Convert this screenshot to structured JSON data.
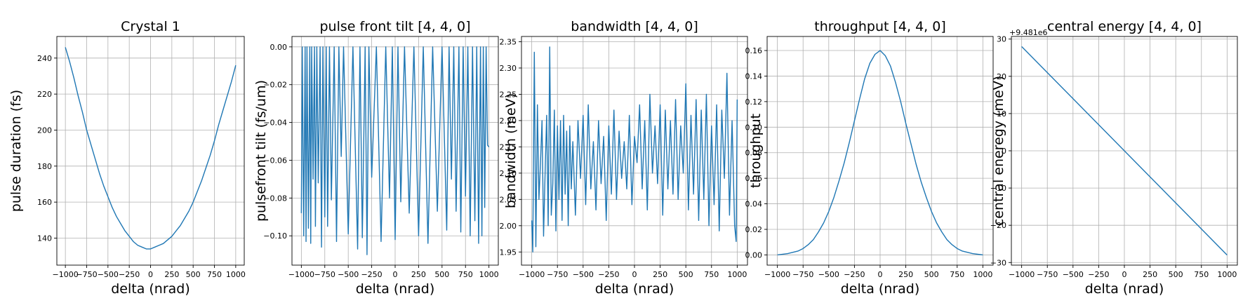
{
  "colors": {
    "series": "#1f77b4",
    "grid": "#b0b0b0",
    "axis": "#000000",
    "background": "#ffffff"
  },
  "chart_data": [
    {
      "type": "line",
      "title": "Crystal 1",
      "xlabel": "delta (nrad)",
      "ylabel": "pulse duration (fs)",
      "xlim": [
        -1100,
        1100
      ],
      "ylim": [
        125,
        252
      ],
      "grid": true,
      "xticks": [
        -1000,
        -750,
        -500,
        -250,
        0,
        250,
        500,
        750,
        1000
      ],
      "xtick_labels": [
        "−1000",
        "−750",
        "−500",
        "−250",
        "0",
        "250",
        "500",
        "750",
        "1000"
      ],
      "yticks": [
        140,
        160,
        180,
        200,
        220,
        240
      ],
      "ytick_labels": [
        "140",
        "160",
        "180",
        "200",
        "220",
        "240"
      ],
      "series": [
        {
          "name": "pulse duration",
          "x": [
            -1000,
            -950,
            -900,
            -850,
            -800,
            -750,
            -700,
            -650,
            -600,
            -550,
            -500,
            -450,
            -400,
            -350,
            -300,
            -250,
            -200,
            -150,
            -100,
            -50,
            0,
            50,
            100,
            150,
            200,
            250,
            300,
            350,
            400,
            450,
            500,
            550,
            600,
            650,
            700,
            750,
            800,
            850,
            900,
            950,
            1000
          ],
          "y": [
            246,
            238,
            229,
            219,
            210,
            200,
            192,
            184,
            176,
            169,
            163,
            157,
            152,
            148,
            144,
            141,
            138,
            136,
            135,
            134,
            134,
            135,
            136,
            137,
            139,
            141,
            144,
            147,
            151,
            155,
            160,
            166,
            172,
            179,
            186,
            194,
            203,
            211,
            219,
            227,
            236
          ]
        }
      ]
    },
    {
      "type": "line",
      "title": "pulse front tilt [4, 4, 0]",
      "xlabel": "delta (nrad)",
      "ylabel": "pulsefront tilt (fs/um)",
      "xlim": [
        -1100,
        1100
      ],
      "ylim": [
        -0.1155,
        0.0055
      ],
      "grid": true,
      "xticks": [
        -1000,
        -750,
        -500,
        -250,
        0,
        250,
        500,
        750,
        1000
      ],
      "xtick_labels": [
        "−1000",
        "−750",
        "−500",
        "−250",
        "0",
        "250",
        "500",
        "750",
        "1000"
      ],
      "yticks": [
        0.0,
        -0.02,
        -0.04,
        -0.06,
        -0.08,
        -0.1
      ],
      "ytick_labels": [
        "0.00",
        "−0.02",
        "−0.04",
        "−0.06",
        "−0.08",
        "−0.10"
      ],
      "series": [
        {
          "name": "pulse front tilt",
          "x": [
            -1000,
            -990,
            -975,
            -960,
            -950,
            -940,
            -925,
            -910,
            -900,
            -890,
            -875,
            -860,
            -850,
            -835,
            -820,
            -800,
            -785,
            -770,
            -750,
            -735,
            -720,
            -700,
            -680,
            -650,
            -625,
            -600,
            -575,
            -550,
            -500,
            -450,
            -400,
            -375,
            -350,
            -320,
            -300,
            -280,
            -250,
            -200,
            -150,
            -100,
            -60,
            -30,
            0,
            30,
            60,
            100,
            150,
            200,
            250,
            300,
            350,
            400,
            450,
            500,
            550,
            575,
            600,
            625,
            650,
            680,
            700,
            725,
            750,
            775,
            800,
            825,
            850,
            870,
            890,
            910,
            925,
            940,
            955,
            970,
            985,
            1000
          ],
          "y": [
            -0.088,
            0.0,
            -0.1,
            0.0,
            -0.103,
            0.0,
            -0.096,
            0.0,
            -0.104,
            0.0,
            -0.07,
            0.0,
            -0.095,
            0.0,
            -0.072,
            0.0,
            -0.106,
            0.0,
            -0.09,
            0.0,
            -0.095,
            0.0,
            -0.081,
            0.0,
            -0.103,
            0.0,
            -0.058,
            0.0,
            -0.099,
            0.0,
            -0.107,
            0.0,
            -0.101,
            0.0,
            -0.11,
            0.0,
            -0.069,
            0.0,
            -0.103,
            0.0,
            -0.08,
            0.0,
            -0.102,
            0.0,
            -0.082,
            0.0,
            -0.088,
            0.0,
            -0.1,
            0.0,
            -0.104,
            0.0,
            -0.087,
            0.0,
            -0.097,
            0.0,
            -0.07,
            0.0,
            -0.087,
            0.0,
            -0.098,
            0.0,
            -0.079,
            0.0,
            -0.1,
            0.0,
            -0.092,
            0.0,
            -0.104,
            0.0,
            -0.1,
            0.0,
            -0.085,
            0.0,
            -0.052,
            -0.053
          ]
        }
      ]
    },
    {
      "type": "line",
      "title": "bandwidth [4, 4, 0]",
      "xlabel": "delta (nrad)",
      "ylabel": "bandwidth (meV)",
      "xlim": [
        -1100,
        1100
      ],
      "ylim": [
        1.925,
        2.36
      ],
      "grid": true,
      "xticks": [
        -1000,
        -750,
        -500,
        -250,
        0,
        250,
        500,
        750,
        1000
      ],
      "xtick_labels": [
        "−1000",
        "−750",
        "−500",
        "−250",
        "0",
        "250",
        "500",
        "750",
        "1000"
      ],
      "yticks": [
        1.95,
        2.0,
        2.05,
        2.1,
        2.15,
        2.2,
        2.25,
        2.3,
        2.35
      ],
      "ytick_labels": [
        "1.95",
        "2.00",
        "2.05",
        "2.10",
        "2.15",
        "2.20",
        "2.25",
        "2.30",
        "2.35"
      ],
      "series": [
        {
          "name": "bandwidth",
          "x": [
            -1000,
            -990,
            -975,
            -960,
            -945,
            -930,
            -915,
            -900,
            -885,
            -870,
            -855,
            -840,
            -825,
            -810,
            -795,
            -780,
            -765,
            -750,
            -735,
            -720,
            -705,
            -690,
            -675,
            -660,
            -645,
            -630,
            -615,
            -600,
            -575,
            -550,
            -525,
            -500,
            -475,
            -450,
            -425,
            -400,
            -375,
            -350,
            -325,
            -300,
            -275,
            -250,
            -225,
            -200,
            -175,
            -150,
            -125,
            -100,
            -75,
            -50,
            -25,
            0,
            25,
            50,
            75,
            100,
            125,
            150,
            175,
            200,
            225,
            250,
            275,
            300,
            325,
            350,
            375,
            400,
            425,
            450,
            475,
            500,
            525,
            550,
            575,
            600,
            625,
            650,
            675,
            700,
            725,
            750,
            775,
            800,
            825,
            850,
            875,
            900,
            925,
            950,
            975,
            990,
            1000
          ],
          "y": [
            2.01,
            1.95,
            2.33,
            1.96,
            2.23,
            2.05,
            2.12,
            2.2,
            1.98,
            2.1,
            2.21,
            2.0,
            2.34,
            2.02,
            2.08,
            2.22,
            1.99,
            2.19,
            2.05,
            2.2,
            2.01,
            2.21,
            2.06,
            2.18,
            2.0,
            2.19,
            2.07,
            2.16,
            2.02,
            2.2,
            2.09,
            2.21,
            2.04,
            2.23,
            2.07,
            2.16,
            2.03,
            2.2,
            2.08,
            2.17,
            2.01,
            2.19,
            2.06,
            2.22,
            2.05,
            2.18,
            2.09,
            2.16,
            2.07,
            2.21,
            2.04,
            2.17,
            2.12,
            2.23,
            2.07,
            2.2,
            2.03,
            2.25,
            2.1,
            2.19,
            2.08,
            2.23,
            2.02,
            2.22,
            2.07,
            2.2,
            2.06,
            2.24,
            2.05,
            2.19,
            2.1,
            2.27,
            2.03,
            2.21,
            2.06,
            2.24,
            2.01,
            2.22,
            2.05,
            2.25,
            2.0,
            2.19,
            2.04,
            2.23,
            1.99,
            2.22,
            2.09,
            2.29,
            2.02,
            2.2,
            2.0,
            1.97,
            2.24
          ]
        }
      ]
    },
    {
      "type": "line",
      "title": "throughput [4, 4, 0]",
      "xlabel": "delta (nrad)",
      "ylabel": "throughput",
      "xlim": [
        -1100,
        1100
      ],
      "ylim": [
        -0.008,
        0.171
      ],
      "grid": true,
      "xticks": [
        -1000,
        -750,
        -500,
        -250,
        0,
        250,
        500,
        750,
        1000
      ],
      "xtick_labels": [
        "−1000",
        "−750",
        "−500",
        "−250",
        "0",
        "250",
        "500",
        "750",
        "1000"
      ],
      "yticks": [
        0.0,
        0.02,
        0.04,
        0.06,
        0.08,
        0.1,
        0.12,
        0.14,
        0.16
      ],
      "ytick_labels": [
        "0.00",
        "0.02",
        "0.04",
        "0.06",
        "0.08",
        "0.10",
        "0.12",
        "0.14",
        "0.16"
      ],
      "series": [
        {
          "name": "throughput",
          "x": [
            -1000,
            -900,
            -800,
            -750,
            -700,
            -650,
            -600,
            -550,
            -500,
            -450,
            -400,
            -350,
            -300,
            -250,
            -200,
            -150,
            -100,
            -50,
            0,
            50,
            100,
            150,
            200,
            250,
            300,
            350,
            400,
            450,
            500,
            550,
            600,
            650,
            700,
            750,
            800,
            900,
            1000
          ],
          "y": [
            0.0,
            0.001,
            0.003,
            0.005,
            0.008,
            0.012,
            0.018,
            0.025,
            0.034,
            0.045,
            0.058,
            0.072,
            0.088,
            0.105,
            0.122,
            0.138,
            0.15,
            0.157,
            0.16,
            0.156,
            0.148,
            0.135,
            0.12,
            0.103,
            0.087,
            0.071,
            0.057,
            0.045,
            0.034,
            0.025,
            0.018,
            0.012,
            0.008,
            0.005,
            0.003,
            0.001,
            0.0
          ]
        }
      ]
    },
    {
      "type": "line",
      "title": "central energy [4, 4, 0]",
      "xlabel": "delta (nrad)",
      "ylabel": "central eneregy (meV)",
      "offset_text": "+9.481e6",
      "xlim": [
        -1100,
        1100
      ],
      "ylim": [
        -30.7,
        30.7
      ],
      "grid": true,
      "xticks": [
        -1000,
        -750,
        -500,
        -250,
        0,
        250,
        500,
        750,
        1000
      ],
      "xtick_labels": [
        "−1000",
        "−750",
        "−500",
        "−250",
        "0",
        "250",
        "500",
        "750",
        "1000"
      ],
      "yticks": [
        -30,
        -20,
        -10,
        0,
        10,
        20,
        30
      ],
      "ytick_labels": [
        "−30",
        "−20",
        "−10",
        "0",
        "10",
        "20",
        "30"
      ],
      "series": [
        {
          "name": "central energy",
          "x": [
            -1000,
            1000
          ],
          "y": [
            28,
            -28
          ]
        }
      ]
    }
  ]
}
